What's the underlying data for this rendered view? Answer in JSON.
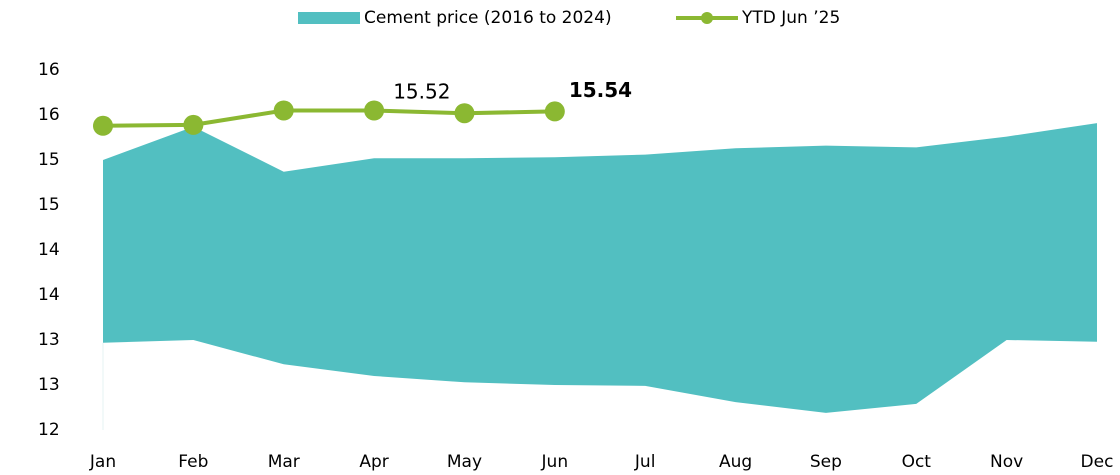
{
  "chart_data": {
    "type": "band_line",
    "categories": [
      "Jan",
      "Feb",
      "Mar",
      "Apr",
      "May",
      "Jun",
      "Jul",
      "Aug",
      "Sep",
      "Oct",
      "Nov",
      "Dec"
    ],
    "series": [
      {
        "name": "Cement price (2016 to 2024)",
        "color": "#52bfc1",
        "kind": "band",
        "values": [
          15.0,
          15.37,
          14.87,
          15.02,
          15.02,
          15.03,
          15.06,
          15.13,
          15.16,
          15.14,
          15.26,
          15.41
        ],
        "low": [
          12.97,
          13.0,
          12.73,
          12.6,
          12.53,
          12.5,
          12.49,
          12.31,
          12.19,
          12.29,
          13.0,
          12.98
        ]
      },
      {
        "name": "YTD Jun ’25",
        "color": "#8bb832",
        "kind": "line",
        "values": [
          15.38,
          15.39,
          15.55,
          15.55,
          15.52,
          15.54,
          null,
          null,
          null,
          null,
          null,
          null
        ],
        "labeled_points": [
          4,
          5
        ]
      }
    ],
    "ylim": [
      12,
      16
    ],
    "yticks": [
      12,
      {
        "value": 12.5,
        "label": "13"
      },
      13,
      {
        "value": 13.5,
        "label": "14"
      },
      14,
      {
        "value": 14.5,
        "label": "15"
      },
      15,
      {
        "value": 15.5,
        "label": "16"
      },
      16
    ],
    "legend": "top"
  }
}
